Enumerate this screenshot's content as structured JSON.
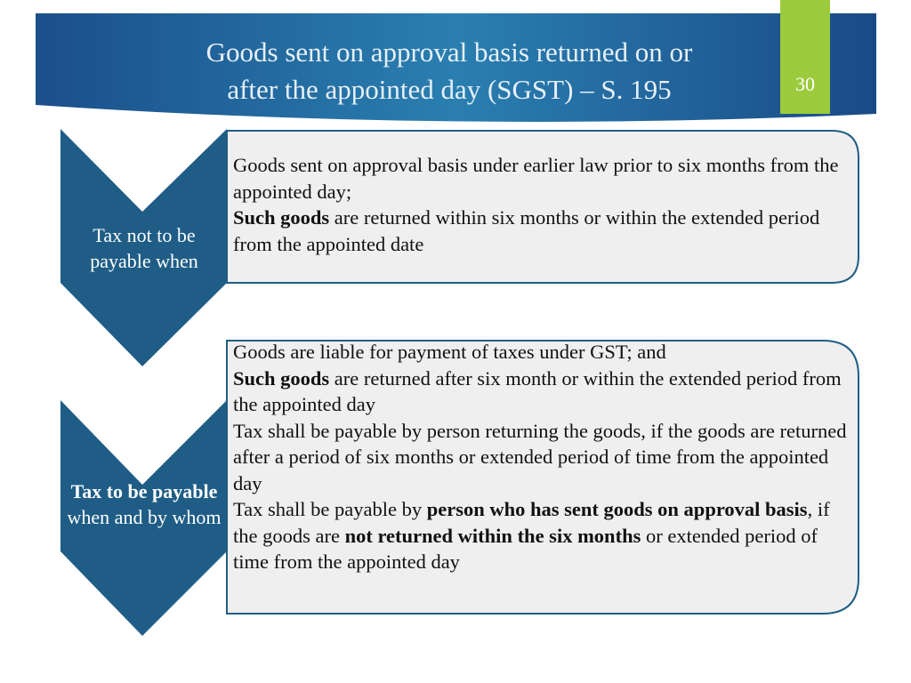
{
  "header": {
    "title_lines": [
      "Goods sent on approval basis returned on or",
      "after the appointed day (SGST) – S. 195"
    ],
    "page_number": "30"
  },
  "sections": [
    {
      "label": [
        {
          "text": "Tax not to be payable when",
          "bold": false
        }
      ],
      "bullets": [
        [
          {
            "text": "Goods sent on approval basis under earlier law prior to six months from the appointed day;",
            "bold": false
          }
        ],
        [
          {
            "text": "Such goods",
            "bold": true
          },
          {
            "text": " are returned within six months or within the extended period from the appointed date",
            "bold": false
          }
        ]
      ]
    },
    {
      "label": [
        {
          "text": "Tax to be payable",
          "bold": true
        },
        {
          "text": " when and by whom",
          "bold": false
        }
      ],
      "bullets": [
        [
          {
            "text": "Goods are liable for payment of taxes under GST; and",
            "bold": false
          }
        ],
        [
          {
            "text": "Such goods",
            "bold": true
          },
          {
            "text": " are returned after six month or within the extended period from the appointed day",
            "bold": false
          }
        ],
        [
          {
            "text": "Tax shall be payable by person returning  the goods, if the goods are returned after a period of six months or extended period of time from the appointed day",
            "bold": false
          }
        ],
        [
          {
            "text": "Tax shall be payable by ",
            "bold": false
          },
          {
            "text": "person who has sent goods on approval basis",
            "bold": true
          },
          {
            "text": ", if the goods are ",
            "bold": false
          },
          {
            "text": "not returned within the six months",
            "bold": true
          },
          {
            "text": " or extended period of time from the appointed day",
            "bold": false
          }
        ]
      ]
    }
  ]
}
